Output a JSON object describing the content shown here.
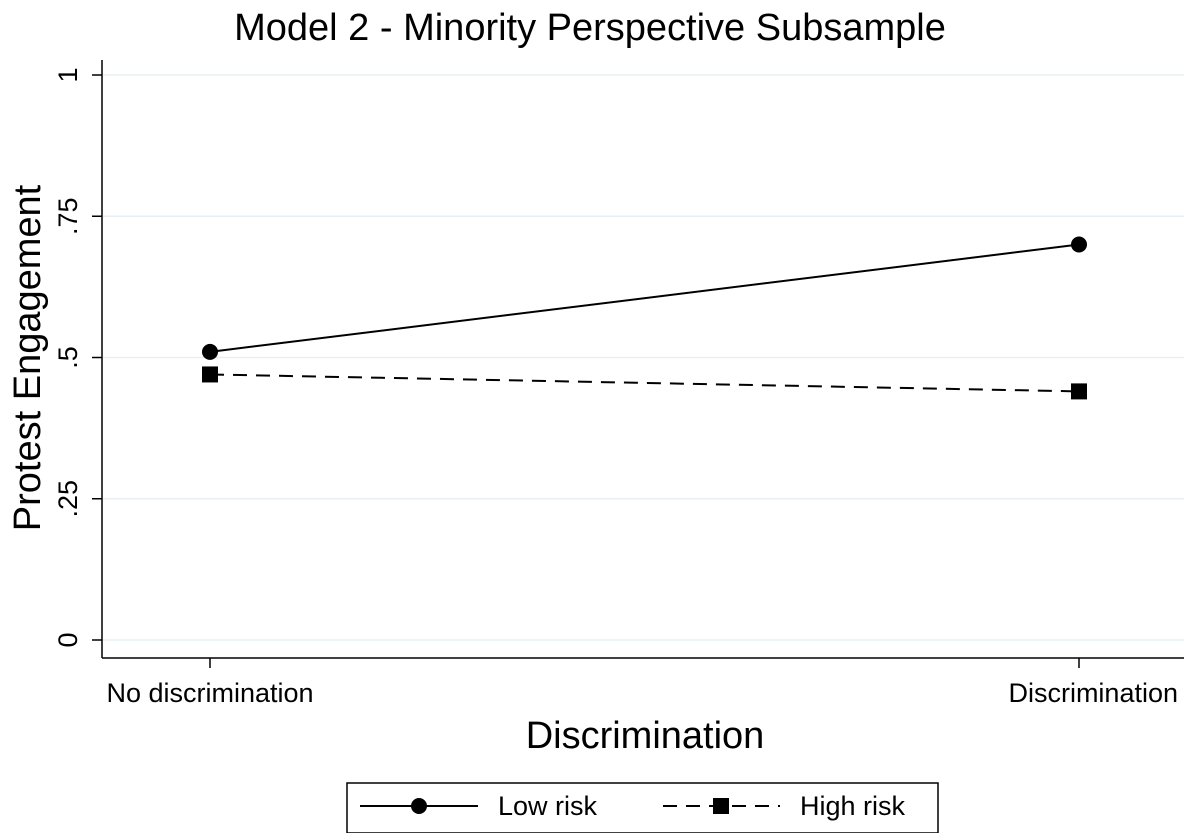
{
  "chart_data": {
    "type": "line",
    "title": "Model 2 - Minority Perspective Subsample",
    "xlabel": "Discrimination",
    "ylabel": "Protest Engagement",
    "categories": [
      "No discrimination",
      "Discrimination"
    ],
    "ylim": [
      0,
      1
    ],
    "yticks": [
      0,
      0.25,
      0.5,
      0.75,
      1
    ],
    "ytick_labels": [
      "0",
      ".25",
      ".5",
      ".75",
      "1"
    ],
    "grid": true,
    "legend_position": "bottom",
    "series": [
      {
        "name": "Low risk",
        "values": [
          0.51,
          0.7
        ],
        "line_style": "solid",
        "marker": "circle",
        "color": "#000000"
      },
      {
        "name": "High risk",
        "values": [
          0.47,
          0.44
        ],
        "line_style": "dashed",
        "marker": "square",
        "color": "#000000"
      }
    ],
    "colors": {
      "grid": "#e8eff2",
      "axis": "#000000",
      "background": "#ffffff"
    }
  }
}
